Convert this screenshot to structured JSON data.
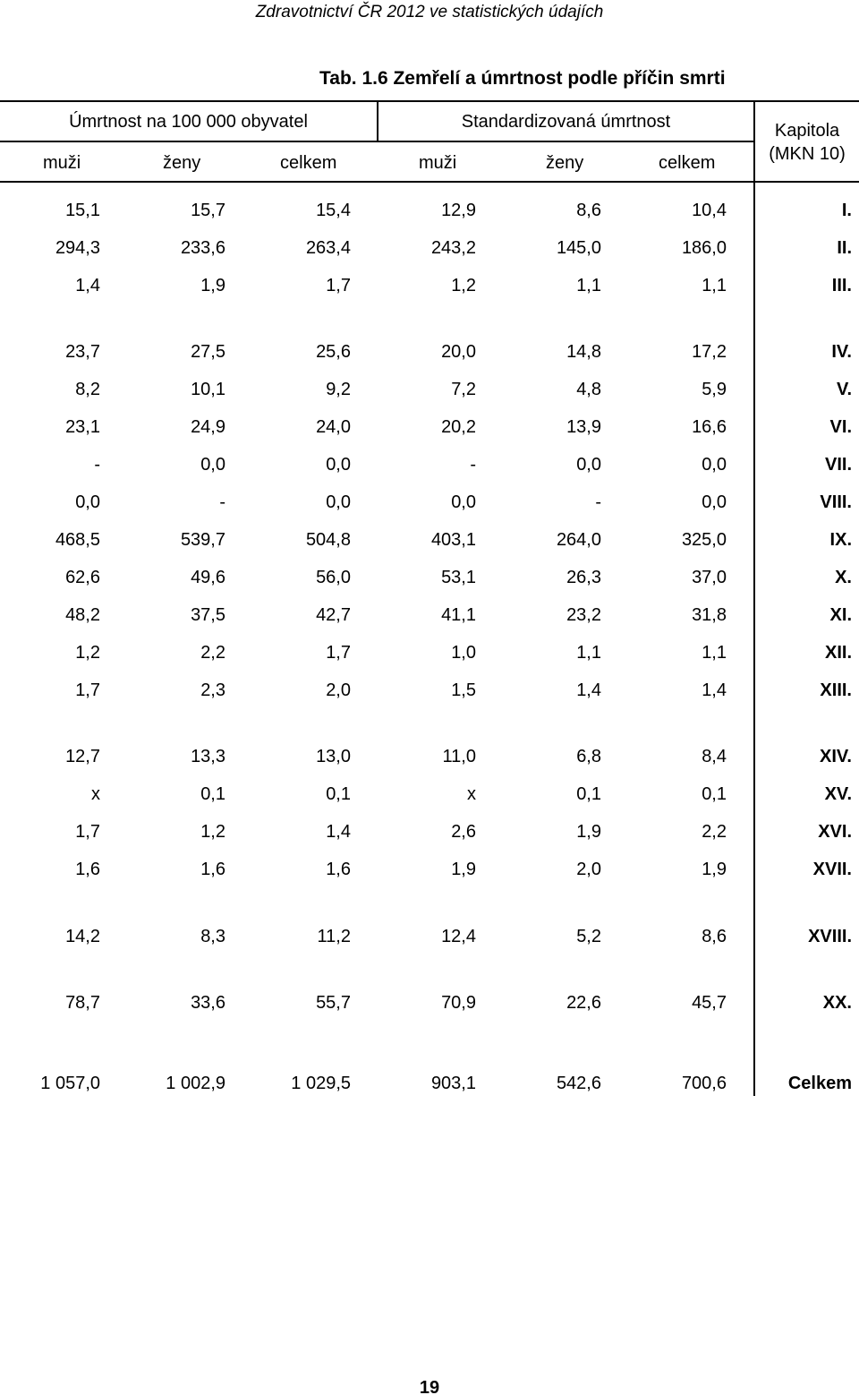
{
  "header": {
    "running_title": "Zdravotnictví ČR 2012 ve statistických údajích",
    "title": "Tab. 1.6 Zemřelí a úmrtnost podle příčin smrti"
  },
  "table": {
    "group_headers": [
      "Úmrtnost na 100 000 obyvatel",
      "Standardizovaná úmrtnost"
    ],
    "chapter_header": [
      "Kapitola",
      "(MKN 10)"
    ],
    "column_headers": [
      "muži",
      "ženy",
      "celkem",
      "muži",
      "ženy",
      "celkem"
    ],
    "rows": [
      [
        "15,1",
        "15,7",
        "15,4",
        "12,9",
        "8,6",
        "10,4",
        "I."
      ],
      [
        "294,3",
        "233,6",
        "263,4",
        "243,2",
        "145,0",
        "186,0",
        "II."
      ],
      [
        "1,4",
        "1,9",
        "1,7",
        "1,2",
        "1,1",
        "1,1",
        "III."
      ],
      [
        "23,7",
        "27,5",
        "25,6",
        "20,0",
        "14,8",
        "17,2",
        "IV."
      ],
      [
        "8,2",
        "10,1",
        "9,2",
        "7,2",
        "4,8",
        "5,9",
        "V."
      ],
      [
        "23,1",
        "24,9",
        "24,0",
        "20,2",
        "13,9",
        "16,6",
        "VI."
      ],
      [
        "-",
        "0,0",
        "0,0",
        "-",
        "0,0",
        "0,0",
        "VII."
      ],
      [
        "0,0",
        "-",
        "0,0",
        "0,0",
        "-",
        "0,0",
        "VIII."
      ],
      [
        "468,5",
        "539,7",
        "504,8",
        "403,1",
        "264,0",
        "325,0",
        "IX."
      ],
      [
        "62,6",
        "49,6",
        "56,0",
        "53,1",
        "26,3",
        "37,0",
        "X."
      ],
      [
        "48,2",
        "37,5",
        "42,7",
        "41,1",
        "23,2",
        "31,8",
        "XI."
      ],
      [
        "1,2",
        "2,2",
        "1,7",
        "1,0",
        "1,1",
        "1,1",
        "XII."
      ],
      [
        "1,7",
        "2,3",
        "2,0",
        "1,5",
        "1,4",
        "1,4",
        "XIII."
      ],
      [
        "12,7",
        "13,3",
        "13,0",
        "11,0",
        "6,8",
        "8,4",
        "XIV."
      ],
      [
        "x",
        "0,1",
        "0,1",
        "x",
        "0,1",
        "0,1",
        "XV."
      ],
      [
        "1,7",
        "1,2",
        "1,4",
        "2,6",
        "1,9",
        "2,2",
        "XVI."
      ],
      [
        "1,6",
        "1,6",
        "1,6",
        "1,9",
        "2,0",
        "1,9",
        "XVII."
      ],
      [
        "14,2",
        "8,3",
        "11,2",
        "12,4",
        "5,2",
        "8,6",
        "XVIII."
      ],
      [
        "78,7",
        "33,6",
        "55,7",
        "70,9",
        "22,6",
        "45,7",
        "XX."
      ],
      [
        "1 057,0",
        "1 002,9",
        "1 029,5",
        "903,1",
        "542,6",
        "700,6",
        "Celkem"
      ]
    ]
  },
  "footer": {
    "page_number": "19"
  }
}
